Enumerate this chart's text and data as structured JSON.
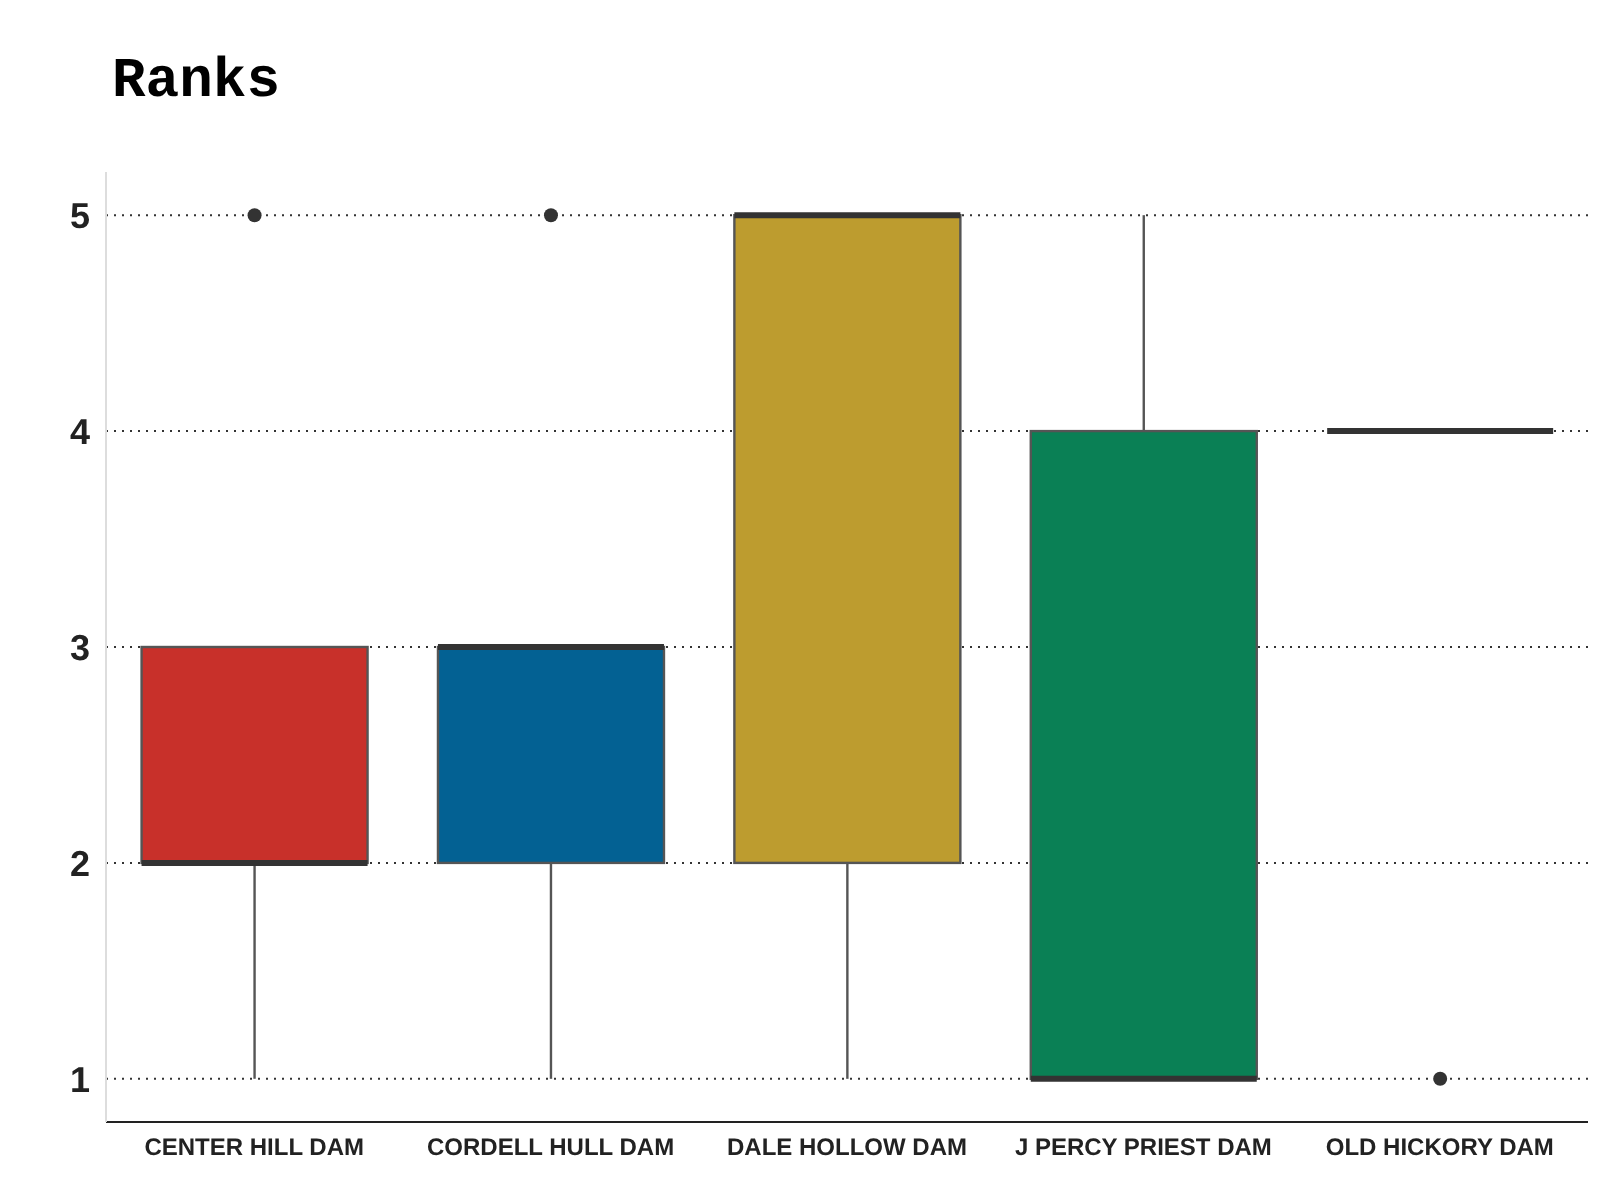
{
  "chart_data": {
    "type": "box",
    "title": "Ranks",
    "categories": [
      "CENTER HILL DAM",
      "CORDELL HULL DAM",
      "DALE HOLLOW DAM",
      "J PERCY PRIEST DAM",
      "OLD HICKORY DAM"
    ],
    "boxes": [
      {
        "low": 1,
        "q1": 2,
        "median": 2,
        "q3": 3,
        "high": 3,
        "outliers": [
          5
        ]
      },
      {
        "low": 1,
        "q1": 2,
        "median": 3,
        "q3": 3,
        "high": 3,
        "outliers": [
          5
        ]
      },
      {
        "low": 1,
        "q1": 2,
        "median": 5,
        "q3": 5,
        "high": 5
      },
      {
        "low": 1,
        "q1": 1,
        "median": 1,
        "q3": 4,
        "high": 5
      },
      {
        "low": 4,
        "q1": 4,
        "median": 4,
        "q3": 4,
        "high": 4,
        "outliers": [
          1
        ]
      }
    ],
    "colors": [
      "#c8302a",
      "#036193",
      "#bd9c2f",
      "#0a8055",
      "#333333"
    ],
    "ylim": [
      0.8,
      5.2
    ],
    "yticks": [
      1,
      2,
      3,
      4,
      5
    ],
    "grid": "y"
  }
}
